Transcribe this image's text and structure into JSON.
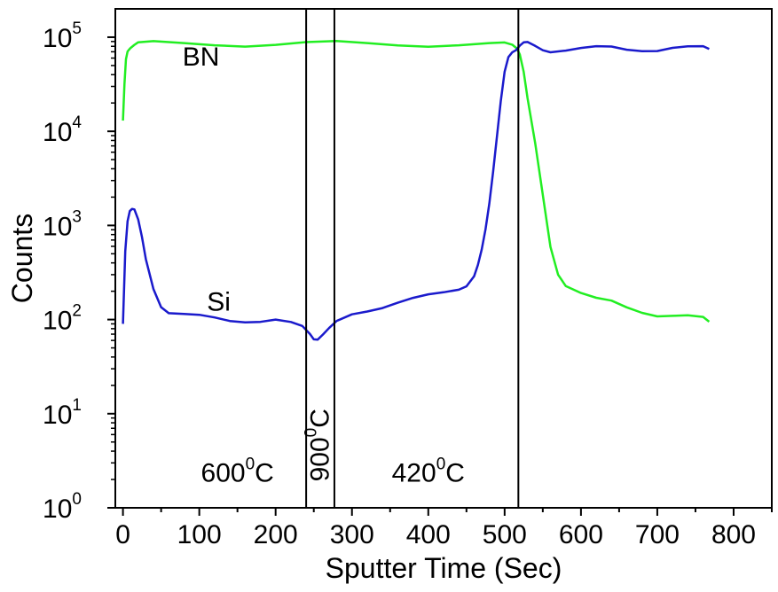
{
  "chart_data": {
    "type": "line",
    "xlabel": "Sputter Time (Sec)",
    "ylabel": "Counts",
    "xlim": [
      -10,
      850
    ],
    "ylim": [
      1,
      200000
    ],
    "yscale": "log",
    "grid": false,
    "x_ticks": [
      0,
      100,
      200,
      300,
      400,
      500,
      600,
      700,
      800
    ],
    "y_ticks": [
      {
        "value": 1,
        "base": "10",
        "exp": "0"
      },
      {
        "value": 10,
        "base": "10",
        "exp": "1"
      },
      {
        "value": 100,
        "base": "10",
        "exp": "2"
      },
      {
        "value": 1000,
        "base": "10",
        "exp": "3"
      },
      {
        "value": 10000,
        "base": "10",
        "exp": "4"
      },
      {
        "value": 100000,
        "base": "10",
        "exp": "5"
      }
    ],
    "series": [
      {
        "name": "BN",
        "color": "#22ee22",
        "x": [
          0,
          2,
          4,
          6,
          8,
          10,
          15,
          20,
          40,
          80,
          120,
          160,
          200,
          240,
          280,
          320,
          360,
          400,
          440,
          480,
          500,
          510,
          516,
          520,
          525,
          530,
          540,
          550,
          560,
          570,
          580,
          600,
          620,
          640,
          660,
          680,
          700,
          720,
          740,
          760,
          768
        ],
        "y": [
          13000,
          30000,
          55000,
          70000,
          78000,
          82000,
          84000,
          84000,
          85000,
          85000,
          86000,
          85000,
          85000,
          85000,
          85000,
          84000,
          85000,
          85000,
          85000,
          84000,
          82000,
          80000,
          78000,
          70000,
          45000,
          22000,
          7000,
          2000,
          600,
          320,
          240,
          190,
          160,
          150,
          135,
          125,
          115,
          110,
          105,
          100,
          95
        ]
      },
      {
        "name": "Si",
        "color": "#1a1acc",
        "x": [
          0,
          3,
          6,
          9,
          12,
          15,
          20,
          25,
          30,
          40,
          50,
          60,
          80,
          100,
          120,
          140,
          160,
          180,
          200,
          220,
          235,
          245,
          250,
          255,
          262,
          270,
          280,
          300,
          320,
          340,
          360,
          380,
          400,
          420,
          440,
          450,
          460,
          465,
          470,
          475,
          480,
          485,
          490,
          495,
          500,
          505,
          510,
          515,
          520,
          525,
          530,
          540,
          550,
          560,
          580,
          600,
          620,
          640,
          660,
          680,
          700,
          720,
          740,
          760,
          768
        ],
        "y": [
          90,
          500,
          1100,
          1500,
          1600,
          1500,
          1100,
          700,
          430,
          220,
          145,
          120,
          110,
          105,
          102,
          100,
          100,
          98,
          97,
          88,
          82,
          72,
          66,
          64,
          68,
          76,
          92,
          115,
          130,
          140,
          150,
          160,
          175,
          195,
          220,
          240,
          290,
          360,
          520,
          900,
          1800,
          4000,
          9000,
          20000,
          40000,
          60000,
          72000,
          78000,
          84000,
          85000,
          83000,
          78000,
          75000,
          74000,
          75000,
          75000,
          75000,
          76000,
          75000,
          76000,
          75000,
          76000,
          75000,
          76000,
          75000
        ]
      }
    ],
    "series_labels": [
      {
        "text": "BN",
        "x": 78,
        "y": 62000
      },
      {
        "text": "Si",
        "x": 110,
        "y": 155
      }
    ],
    "vlines": [
      240,
      277,
      518
    ],
    "region_labels": [
      {
        "base": "600",
        "sup": "0",
        "unit": "C",
        "x": 150,
        "y": 2.35,
        "rotate": false
      },
      {
        "base": "900",
        "sup": "0",
        "unit": "C",
        "x": 258,
        "y": 1.9,
        "rotate": true
      },
      {
        "base": "420",
        "sup": "0",
        "unit": "C",
        "x": 400,
        "y": 2.35,
        "rotate": false
      }
    ]
  }
}
